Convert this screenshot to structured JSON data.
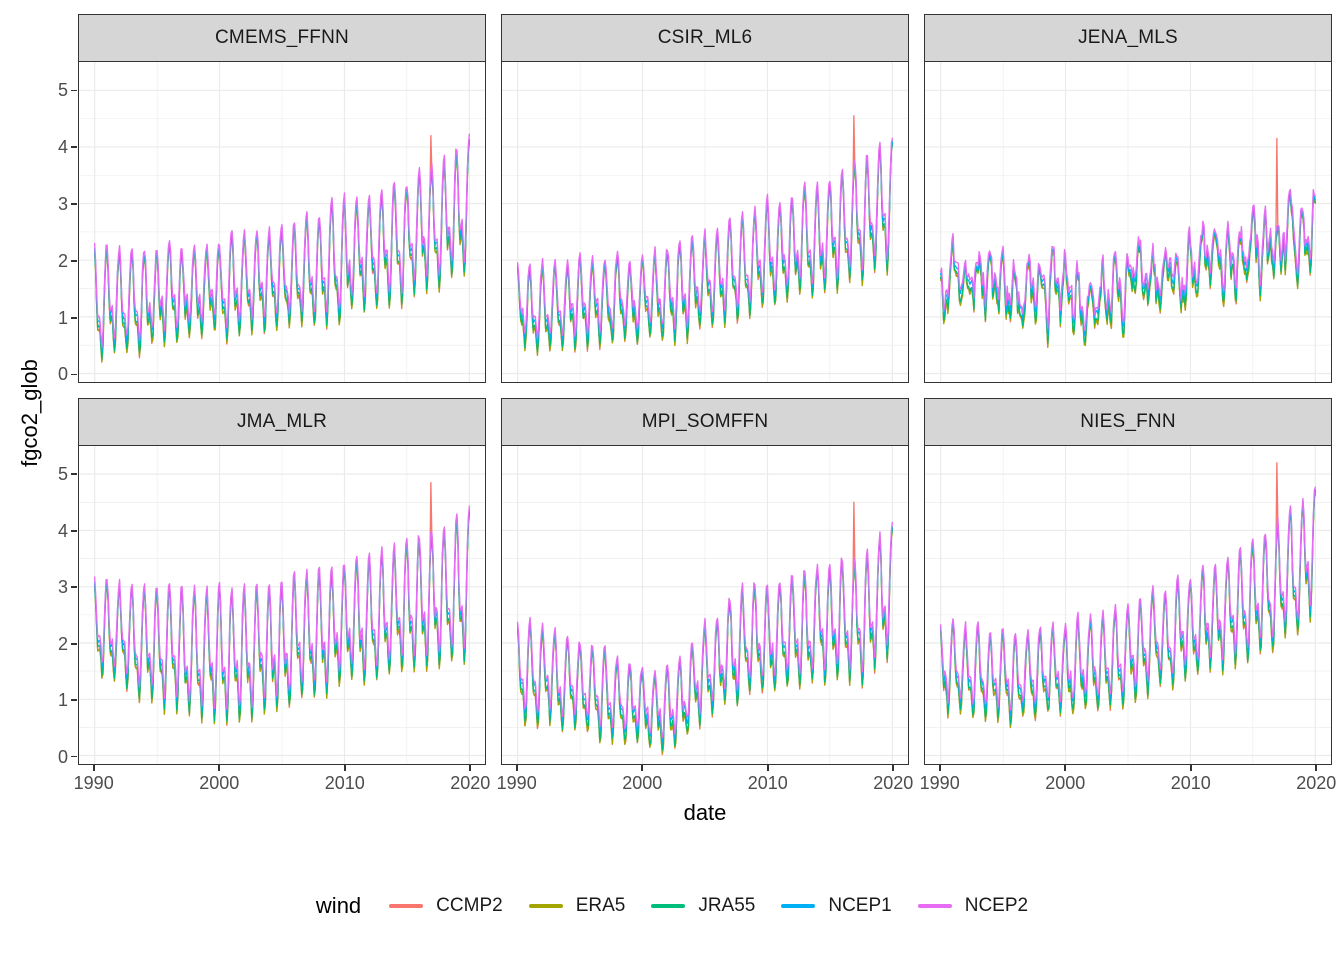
{
  "figure": {
    "y_axis_title": "fgco2_glob",
    "x_axis_title": "date"
  },
  "legend": {
    "title": "wind",
    "entries": [
      {
        "label": "CCMP2",
        "color": "#F8766D"
      },
      {
        "label": "ERA5",
        "color": "#A3A500"
      },
      {
        "label": "JRA55",
        "color": "#00BF7D"
      },
      {
        "label": "NCEP1",
        "color": "#00B0F6"
      },
      {
        "label": "NCEP2",
        "color": "#E76BF3"
      }
    ]
  },
  "chart_data": {
    "type": "line",
    "description": "Faceted monthly time series (1990-2020) of global ocean CO2 flux fgco2_glob vs date; 6 product facets, 5 wind-forcing series per facet tracking closely with an annual seasonal cycle. Values read from gridlines.",
    "x_domain": [
      1988.75,
      2021.25
    ],
    "y_domain": [
      -0.15,
      5.5
    ],
    "x_ticks": [
      1990,
      2000,
      2010,
      2020
    ],
    "y_ticks": [
      0,
      1,
      2,
      3,
      4,
      5
    ],
    "grid": {
      "major_x": [
        1990,
        2000,
        2010,
        2020
      ],
      "minor_x": [
        1995,
        2005,
        2015
      ],
      "major_y": [
        0,
        1,
        2,
        3,
        4,
        5
      ],
      "minor_y": [
        0.5,
        1.5,
        2.5,
        3.5,
        4.5
      ]
    },
    "sampling": "monthly, Jan 1990 through Jan 2020",
    "series": [
      "CCMP2",
      "ERA5",
      "JRA55",
      "NCEP1",
      "NCEP2"
    ],
    "winds": [
      {
        "name": "CCMP2",
        "trough_offset": -0.16,
        "peak_offset": 0.0
      },
      {
        "name": "ERA5",
        "trough_offset": -0.15,
        "peak_offset": -0.02
      },
      {
        "name": "JRA55",
        "trough_offset": -0.09,
        "peak_offset": 0.02
      },
      {
        "name": "NCEP1",
        "trough_offset": 0.05,
        "peak_offset": 0.05
      },
      {
        "name": "NCEP2",
        "trough_offset": 0.13,
        "peak_offset": 0.11
      }
    ],
    "facets": [
      {
        "title": "CMEMS_FFNN",
        "trend": [
          [
            1990,
            1.28
          ],
          [
            1994,
            1.32
          ],
          [
            1998,
            1.42
          ],
          [
            2002,
            1.55
          ],
          [
            2006,
            1.72
          ],
          [
            2010,
            1.98
          ],
          [
            2014,
            2.28
          ],
          [
            2017,
            2.55
          ],
          [
            2020,
            2.92
          ]
        ],
        "season_amp": [
          [
            1990,
            0.9
          ],
          [
            1995,
            0.82
          ],
          [
            2000,
            0.78
          ],
          [
            2005,
            0.85
          ],
          [
            2010,
            0.95
          ],
          [
            2015,
            1.0
          ],
          [
            2020,
            1.15
          ]
        ],
        "noise": 0.09,
        "spike": {
          "series": "CCMP2",
          "year": 2016.92,
          "value": 4.2
        }
      },
      {
        "title": "CSIR_ML6",
        "trend": [
          [
            1990,
            1.15
          ],
          [
            1995,
            1.2
          ],
          [
            2000,
            1.28
          ],
          [
            2005,
            1.6
          ],
          [
            2010,
            2.05
          ],
          [
            2015,
            2.45
          ],
          [
            2020,
            3.0
          ]
        ],
        "season_amp": [
          [
            1990,
            0.72
          ],
          [
            2000,
            0.72
          ],
          [
            2010,
            0.85
          ],
          [
            2020,
            1.1
          ]
        ],
        "noise": 0.09,
        "spike": {
          "series": "CCMP2",
          "year": 2016.92,
          "value": 4.55
        }
      },
      {
        "title": "JENA_MLS",
        "trend": [
          [
            1990,
            1.3
          ],
          [
            1992,
            1.75
          ],
          [
            1994,
            1.6
          ],
          [
            1996,
            1.35
          ],
          [
            1998,
            1.5
          ],
          [
            2000,
            1.45
          ],
          [
            2002,
            1.15
          ],
          [
            2004,
            1.55
          ],
          [
            2006,
            1.7
          ],
          [
            2008,
            1.55
          ],
          [
            2010,
            1.85
          ],
          [
            2012,
            2.0
          ],
          [
            2014,
            2.1
          ],
          [
            2016,
            2.2
          ],
          [
            2018,
            2.45
          ],
          [
            2020,
            2.55
          ]
        ],
        "season_amp": [
          [
            1990,
            0.45
          ],
          [
            2000,
            0.5
          ],
          [
            2010,
            0.5
          ],
          [
            2020,
            0.55
          ]
        ],
        "noise": 0.26,
        "spike": {
          "series": "CCMP2",
          "year": 2016.92,
          "value": 4.15
        }
      },
      {
        "title": "JMA_MLR",
        "trend": [
          [
            1990,
            2.25
          ],
          [
            1994,
            2.0
          ],
          [
            1998,
            1.8
          ],
          [
            2001,
            1.72
          ],
          [
            2005,
            2.0
          ],
          [
            2010,
            2.3
          ],
          [
            2015,
            2.55
          ],
          [
            2020,
            3.0
          ]
        ],
        "season_amp": [
          [
            1990,
            0.75
          ],
          [
            1995,
            1.0
          ],
          [
            2000,
            1.2
          ],
          [
            2005,
            1.1
          ],
          [
            2010,
            1.05
          ],
          [
            2015,
            1.1
          ],
          [
            2020,
            1.3
          ]
        ],
        "noise": 0.09,
        "spike": {
          "series": "CCMP2",
          "year": 2016.92,
          "value": 4.85
        }
      },
      {
        "title": "MPI_SOMFFN",
        "trend": [
          [
            1990,
            1.5
          ],
          [
            1994,
            1.3
          ],
          [
            1998,
            1.0
          ],
          [
            2000,
            0.85
          ],
          [
            2002,
            0.82
          ],
          [
            2005,
            1.45
          ],
          [
            2008,
            1.95
          ],
          [
            2011,
            2.15
          ],
          [
            2015,
            2.3
          ],
          [
            2018,
            2.5
          ],
          [
            2020,
            2.9
          ]
        ],
        "season_amp": [
          [
            1990,
            0.85
          ],
          [
            1995,
            0.75
          ],
          [
            2000,
            0.6
          ],
          [
            2005,
            0.8
          ],
          [
            2010,
            0.95
          ],
          [
            2015,
            1.0
          ],
          [
            2020,
            1.2
          ]
        ],
        "noise": 0.09,
        "spike": {
          "series": "CCMP2",
          "year": 2016.92,
          "value": 4.5
        }
      },
      {
        "title": "NIES_FNN",
        "trend": [
          [
            1990,
            1.55
          ],
          [
            1994,
            1.4
          ],
          [
            1998,
            1.45
          ],
          [
            2002,
            1.6
          ],
          [
            2006,
            1.9
          ],
          [
            2010,
            2.25
          ],
          [
            2014,
            2.65
          ],
          [
            2017,
            3.0
          ],
          [
            2020,
            3.65
          ]
        ],
        "season_amp": [
          [
            1990,
            0.72
          ],
          [
            2000,
            0.75
          ],
          [
            2010,
            0.85
          ],
          [
            2020,
            1.1
          ]
        ],
        "noise": 0.09,
        "spike": {
          "series": "CCMP2",
          "year": 2016.92,
          "value": 5.2
        }
      }
    ],
    "style": {
      "grid_color": "#ebebeb",
      "panel_border_color": "#333333",
      "strip_fill": "#d6d6d6",
      "tick_text_color": "#4d4d4d"
    }
  }
}
